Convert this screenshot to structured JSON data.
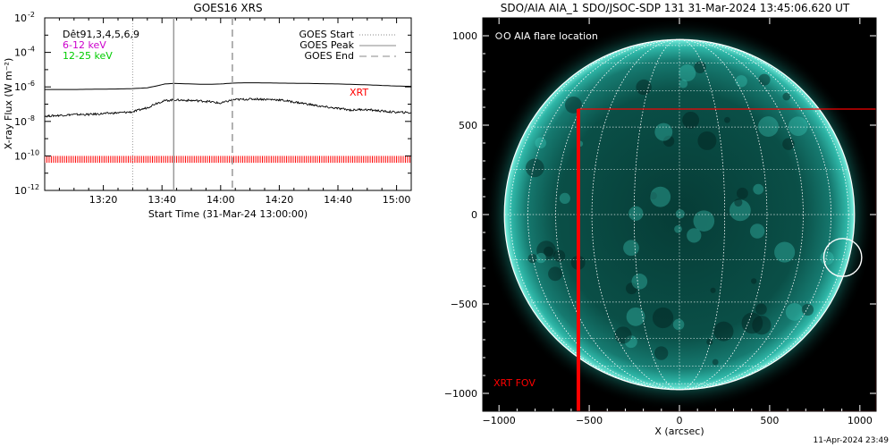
{
  "chart_data": [
    {
      "type": "line",
      "title": "GOES16 XRS",
      "xlabel": "Start Time (31-Mar-24 13:00:00)",
      "ylabel": "X-ray Flux (W m⁻²)",
      "x_unit": "minutes after 13:00",
      "xlim": [
        0,
        125
      ],
      "ylim_log10": [
        -12,
        -2
      ],
      "scale": "log",
      "x_ticks": [
        20,
        40,
        60,
        80,
        100,
        120
      ],
      "x_tick_labels": [
        "13:20",
        "13:40",
        "14:00",
        "14:20",
        "14:40",
        "15:00"
      ],
      "y_ticks": [
        -12,
        -10,
        -8,
        -6,
        -4,
        -2
      ],
      "y_tick_labels": [
        {
          "base": "10",
          "exp": "-12"
        },
        {
          "base": "10",
          "exp": "-10"
        },
        {
          "base": "10",
          "exp": "-8"
        },
        {
          "base": "10",
          "exp": "-6"
        },
        {
          "base": "10",
          "exp": "-4"
        },
        {
          "base": "10",
          "exp": "-2"
        }
      ],
      "info_lines": [
        {
          "text": "Dêt91,3,4,5,6,9",
          "color": "#000000"
        },
        {
          "text": "6-12 keV",
          "color": "#cc00cc"
        },
        {
          "text": "12-25 keV",
          "color": "#00cc00"
        }
      ],
      "legend": [
        {
          "label": "GOES Start",
          "style": "dotted"
        },
        {
          "label": "GOES Peak",
          "style": "solid"
        },
        {
          "label": "GOES End",
          "style": "dashed"
        }
      ],
      "markers": {
        "goes_start": 30,
        "goes_peak": 44,
        "goes_end": 64
      },
      "xrt_label": "XRT",
      "xrt_color": "#ff0000",
      "series": [
        {
          "line": "upper",
          "x": [
            0,
            10,
            20,
            25,
            30,
            35,
            38,
            41,
            44,
            48,
            52,
            56,
            60,
            64,
            68,
            72,
            80,
            90,
            100,
            110,
            120,
            125
          ],
          "log10_flux": [
            -6.15,
            -6.15,
            -6.13,
            -6.12,
            -6.1,
            -6.05,
            -5.95,
            -5.83,
            -5.8,
            -5.82,
            -5.84,
            -5.85,
            -5.83,
            -5.78,
            -5.76,
            -5.76,
            -5.78,
            -5.8,
            -5.83,
            -5.88,
            -5.95,
            -5.97
          ]
        },
        {
          "line": "lower",
          "x": [
            0,
            5,
            10,
            15,
            20,
            25,
            30,
            35,
            38,
            41,
            44,
            48,
            52,
            56,
            60,
            64,
            68,
            72,
            80,
            88,
            95,
            100,
            105,
            108,
            112,
            118,
            125
          ],
          "log10_flux": [
            -7.7,
            -7.65,
            -7.6,
            -7.6,
            -7.55,
            -7.5,
            -7.45,
            -7.2,
            -6.95,
            -6.8,
            -6.75,
            -6.78,
            -6.8,
            -6.85,
            -6.95,
            -6.75,
            -6.72,
            -6.7,
            -6.75,
            -6.95,
            -7.15,
            -7.25,
            -7.35,
            -7.3,
            -7.35,
            -7.45,
            -7.5
          ]
        }
      ],
      "xrt_band_log10": [
        -10.4,
        -10.0
      ]
    },
    {
      "type": "image",
      "title": "SDO/AIA AIA_1 SDO/JSOC-SDP 131 31-Mar-2024 13:45:06.620 UT",
      "xlabel": "X (arcsec)",
      "ylabel": "",
      "xlim": [
        -1090,
        1090
      ],
      "ylim": [
        -1100,
        1100
      ],
      "x_ticks": [
        -1000,
        -500,
        0,
        500,
        1000
      ],
      "y_ticks": [
        -1000,
        -500,
        0,
        500,
        1000
      ],
      "disk_radius_arcsec": 970,
      "flare_legend": "O AIA flare location",
      "flare_location": {
        "x": 905,
        "y": -240,
        "radius": 105
      },
      "xrt_fov_label": "XRT FOV",
      "xrt_fov": {
        "x0": -560,
        "x1": 1090,
        "y0": -1100,
        "y1": 590
      },
      "fov_color": "#ff0000",
      "disk_color": "#1fa89a",
      "background_color": "#000000"
    }
  ],
  "footer": {
    "date": "11-Apr-2024 23:49"
  }
}
